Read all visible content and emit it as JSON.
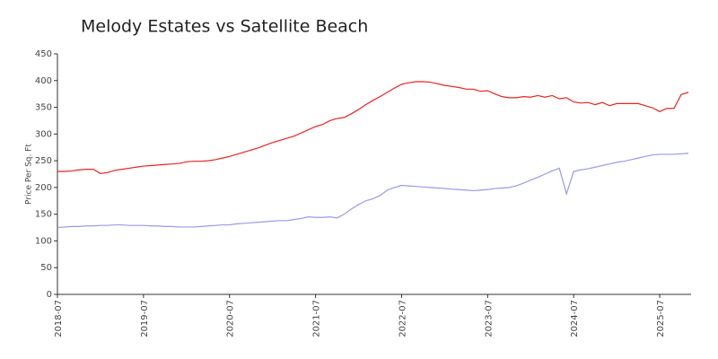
{
  "chart_data": {
    "type": "line",
    "title": "Melody Estates vs Satellite Beach",
    "y_label": "Price Per Sq. Ft",
    "categories": [
      "2018-07",
      null,
      null,
      null,
      null,
      null,
      null,
      null,
      null,
      null,
      null,
      null,
      "2019-07",
      null,
      null,
      null,
      null,
      null,
      null,
      null,
      null,
      null,
      null,
      null,
      "2020-07",
      null,
      null,
      null,
      null,
      null,
      null,
      null,
      null,
      null,
      null,
      null,
      "2021-07",
      null,
      null,
      null,
      null,
      null,
      null,
      null,
      null,
      null,
      null,
      null,
      "2022-07",
      null,
      null,
      null,
      null,
      null,
      null,
      null,
      null,
      null,
      null,
      null,
      "2023-07",
      null,
      null,
      null,
      null,
      null,
      null,
      null,
      null,
      null,
      null,
      null,
      "2024-07",
      null,
      null,
      null,
      null,
      null,
      null,
      null,
      null,
      null,
      null,
      null,
      "2025-07",
      null,
      null,
      null,
      null
    ],
    "series": [
      {
        "color": "#ee2222",
        "values": [
          230,
          230,
          231,
          233,
          234,
          234,
          226,
          228,
          232,
          234,
          236,
          238,
          240,
          241,
          242,
          243,
          244,
          245,
          248,
          249,
          249,
          250,
          252,
          255,
          258,
          262,
          266,
          270,
          274,
          279,
          284,
          288,
          292,
          296,
          302,
          308,
          314,
          318,
          325,
          329,
          331,
          338,
          346,
          355,
          363,
          370,
          378,
          386,
          393,
          396,
          398,
          398,
          397,
          394,
          391,
          389,
          387,
          384,
          384,
          380,
          381,
          375,
          370,
          368,
          368,
          370,
          369,
          372,
          369,
          372,
          366,
          368,
          360,
          358,
          359,
          355,
          359,
          353,
          357,
          357,
          357,
          357,
          353,
          349,
          342,
          348,
          348,
          374,
          378
        ]
      },
      {
        "color": "#9999ee",
        "values": [
          125,
          126,
          127,
          127,
          128,
          128,
          129,
          129,
          130,
          130,
          129,
          129,
          129,
          128,
          128,
          127,
          127,
          126,
          126,
          126,
          127,
          128,
          129,
          130,
          130,
          132,
          133,
          134,
          135,
          136,
          137,
          138,
          138,
          140,
          142,
          145,
          144,
          144,
          145,
          143,
          150,
          160,
          168,
          175,
          179,
          185,
          195,
          200,
          204,
          203,
          202,
          201,
          200,
          199,
          198,
          197,
          196,
          195,
          194,
          195,
          196,
          198,
          199,
          200,
          203,
          208,
          214,
          219,
          225,
          231,
          236,
          188,
          230,
          233,
          235,
          238,
          241,
          244,
          247,
          249,
          252,
          255,
          258,
          261,
          262,
          262,
          262,
          263,
          264
        ]
      }
    ],
    "ylim": [
      0,
      450
    ],
    "yticks": [
      0,
      50,
      100,
      150,
      200,
      250,
      300,
      350,
      400,
      450
    ],
    "grid": false
  }
}
